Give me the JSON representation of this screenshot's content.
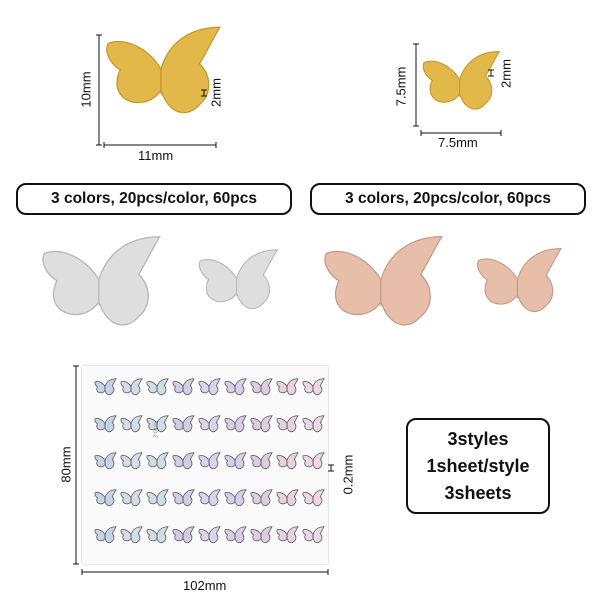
{
  "colors": {
    "gold": "#e2b84a",
    "gold_dark": "#c8952a",
    "silver": "#dcdcdc",
    "silver_dark": "#b9b9b9",
    "rose": "#e4bba8",
    "rose_dark": "#c99a86"
  },
  "large_butterfly": {
    "width_label": "11mm",
    "height_label": "10mm",
    "thickness_label": "2mm"
  },
  "small_butterfly": {
    "width_label": "7.5mm",
    "height_label": "7.5mm",
    "thickness_label": "2mm"
  },
  "badges": {
    "left": "3 colors, 20pcs/color, 60pcs",
    "right": "3 colors, 20pcs/color, 60pcs"
  },
  "sheet": {
    "width_label": "102mm",
    "height_label": "80mm",
    "thickness_label": "0.2mm",
    "code": "RB20-2"
  },
  "info": {
    "line1": "3styles",
    "line2": "1sheet/style",
    "line3": "3sheets"
  }
}
